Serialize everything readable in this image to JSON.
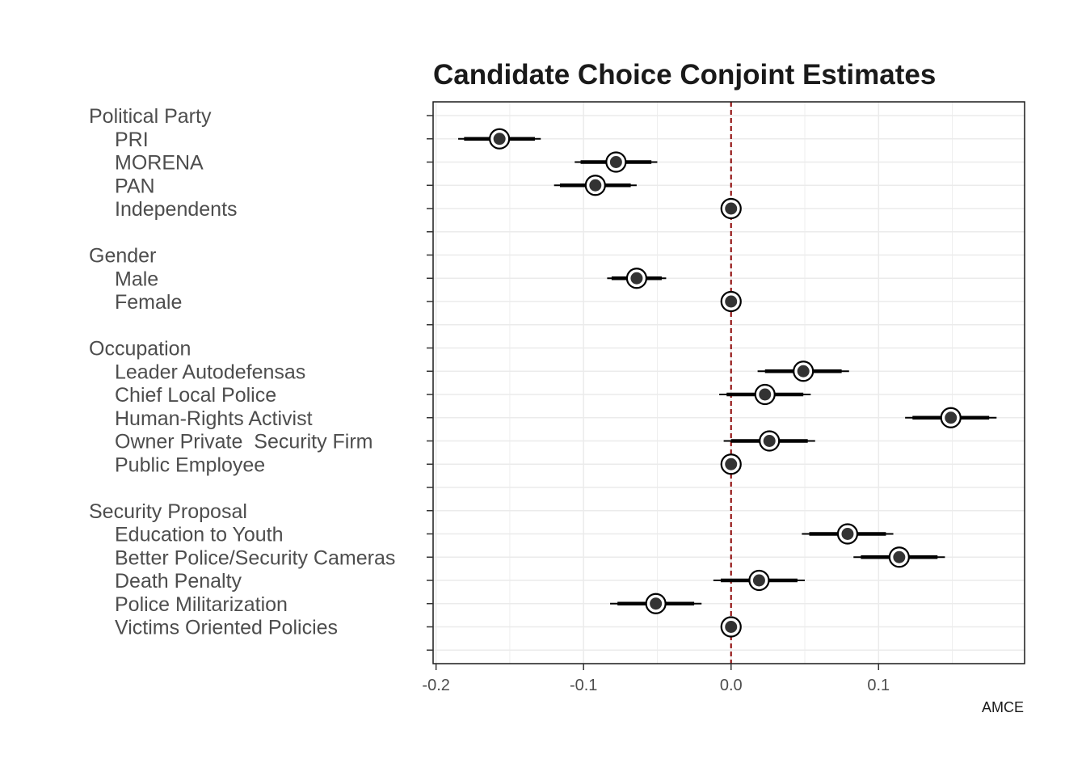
{
  "chart_data": {
    "type": "scatter",
    "subtype": "coefficient-plot",
    "title": "Candidate Choice Conjoint Estimates",
    "xlabel": "AMCE",
    "ylabel": "",
    "xlim": [
      -0.202,
      0.199
    ],
    "xticks": [
      -0.2,
      -0.1,
      0.0,
      0.1
    ],
    "xtick_labels": [
      "-0.2",
      "-0.1",
      "0.0",
      "0.1"
    ],
    "reference_line": {
      "x": 0,
      "color": "#8b0000",
      "style": "dashed"
    },
    "grid": true,
    "legend": "none",
    "rows": [
      {
        "label": "Political Party",
        "header": true
      },
      {
        "label": "PRI",
        "estimate": -0.157,
        "ci_inner": [
          -0.181,
          -0.133
        ],
        "ci_outer": [
          -0.185,
          -0.129
        ]
      },
      {
        "label": "MORENA",
        "estimate": -0.078,
        "ci_inner": [
          -0.102,
          -0.054
        ],
        "ci_outer": [
          -0.106,
          -0.05
        ]
      },
      {
        "label": "PAN",
        "estimate": -0.092,
        "ci_inner": [
          -0.116,
          -0.068
        ],
        "ci_outer": [
          -0.12,
          -0.064
        ]
      },
      {
        "label": "Independents",
        "estimate": 0.0,
        "reference": true
      },
      {
        "label": "",
        "spacer": true
      },
      {
        "label": "Gender",
        "header": true
      },
      {
        "label": "Male",
        "estimate": -0.064,
        "ci_inner": [
          -0.081,
          -0.047
        ],
        "ci_outer": [
          -0.084,
          -0.044
        ]
      },
      {
        "label": "Female",
        "estimate": 0.0,
        "reference": true
      },
      {
        "label": "",
        "spacer": true
      },
      {
        "label": "Occupation",
        "header": true
      },
      {
        "label": "Leader Autodefensas",
        "estimate": 0.049,
        "ci_inner": [
          0.023,
          0.075
        ],
        "ci_outer": [
          0.018,
          0.08
        ]
      },
      {
        "label": "Chief Local Police",
        "estimate": 0.023,
        "ci_inner": [
          -0.003,
          0.049
        ],
        "ci_outer": [
          -0.008,
          0.054
        ]
      },
      {
        "label": "Human-Rights Activist",
        "estimate": 0.149,
        "ci_inner": [
          0.123,
          0.175
        ],
        "ci_outer": [
          0.118,
          0.18
        ]
      },
      {
        "label": "Owner Private  Security Firm",
        "estimate": 0.026,
        "ci_inner": [
          0.0,
          0.052
        ],
        "ci_outer": [
          -0.005,
          0.057
        ]
      },
      {
        "label": "Public Employee",
        "estimate": 0.0,
        "reference": true
      },
      {
        "label": "",
        "spacer": true
      },
      {
        "label": "Security Proposal",
        "header": true
      },
      {
        "label": "Education to Youth",
        "estimate": 0.079,
        "ci_inner": [
          0.053,
          0.105
        ],
        "ci_outer": [
          0.048,
          0.11
        ]
      },
      {
        "label": "Better Police/Security Cameras",
        "estimate": 0.114,
        "ci_inner": [
          0.088,
          0.14
        ],
        "ci_outer": [
          0.083,
          0.145
        ]
      },
      {
        "label": "Death Penalty",
        "estimate": 0.019,
        "ci_inner": [
          -0.007,
          0.045
        ],
        "ci_outer": [
          -0.012,
          0.05
        ]
      },
      {
        "label": "Police Militarization",
        "estimate": -0.051,
        "ci_inner": [
          -0.077,
          -0.025
        ],
        "ci_outer": [
          -0.082,
          -0.02
        ]
      },
      {
        "label": "Victims Oriented Policies",
        "estimate": 0.0,
        "reference": true
      },
      {
        "label": "",
        "spacer": true
      }
    ]
  }
}
